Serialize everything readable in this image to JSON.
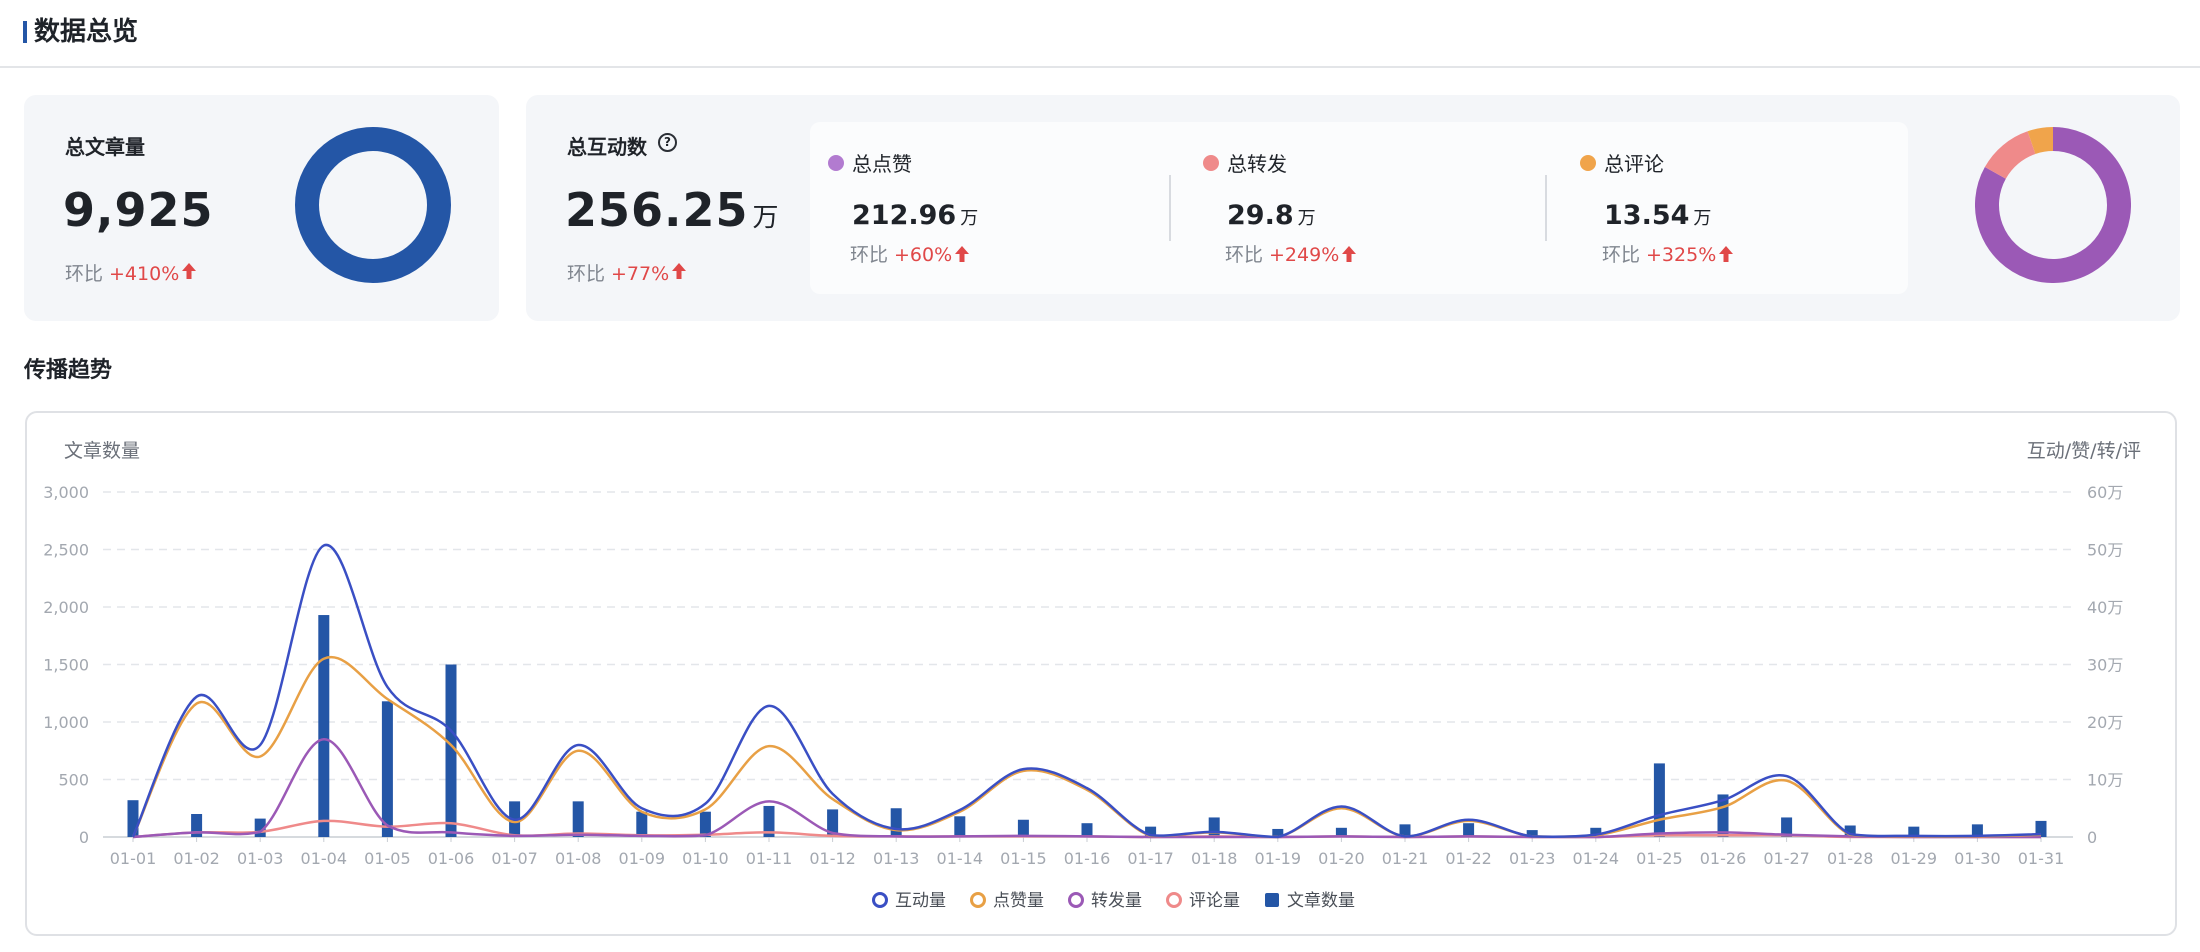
{
  "header": {
    "title": "数据总览"
  },
  "overview": {
    "articles": {
      "label": "总文章量",
      "value": "9,925",
      "mom_label": "环比",
      "mom_value": "+410%",
      "donut_color": "#2456a6"
    },
    "interactions": {
      "label": "总互动数",
      "value": "256.25",
      "unit": "万",
      "mom_label": "环比",
      "mom_value": "+77%",
      "items": [
        {
          "name": "总点赞",
          "value": "212.96",
          "unit": "万",
          "mom_label": "环比",
          "mom_value": "+60%",
          "color": "#9b59b6"
        },
        {
          "name": "总转发",
          "value": "29.8",
          "unit": "万",
          "mom_label": "环比",
          "mom_value": "+249%",
          "color": "#ef8a8a"
        },
        {
          "name": "总评论",
          "value": "13.54",
          "unit": "万",
          "mom_label": "环比",
          "mom_value": "+325%",
          "color": "#f0a44b"
        }
      ]
    }
  },
  "trend": {
    "title": "传播趋势",
    "chart_data": {
      "type": "bar+line",
      "ylabel_left": "文章数量",
      "ylabel_right": "互动/赞/转/评",
      "yticks_left": [
        "0",
        "500",
        "1,000",
        "1,500",
        "2,000",
        "2,500",
        "3,000"
      ],
      "yticks_right": [
        "0",
        "10万",
        "20万",
        "30万",
        "40万",
        "50万",
        "60万"
      ],
      "ylim_left": [
        0,
        3000
      ],
      "ylim_right": [
        0,
        600000
      ],
      "grid": true,
      "legend_position": "bottom",
      "categories": [
        "01-01",
        "01-02",
        "01-03",
        "01-04",
        "01-05",
        "01-06",
        "01-07",
        "01-08",
        "01-09",
        "01-10",
        "01-11",
        "01-12",
        "01-13",
        "01-14",
        "01-15",
        "01-16",
        "01-17",
        "01-18",
        "01-19",
        "01-20",
        "01-21",
        "01-22",
        "01-23",
        "01-24",
        "01-25",
        "01-26",
        "01-27",
        "01-28",
        "01-29",
        "01-30",
        "01-31"
      ],
      "bars": {
        "name": "文章数量",
        "color": "#2456a6",
        "values": [
          320,
          200,
          160,
          1930,
          1180,
          1500,
          310,
          310,
          220,
          220,
          270,
          240,
          250,
          180,
          150,
          120,
          90,
          170,
          70,
          80,
          110,
          120,
          60,
          80,
          640,
          370,
          170,
          100,
          90,
          110,
          140
        ]
      },
      "series": [
        {
          "name": "互动量",
          "color": "#3a4fc4",
          "values": [
            0,
            244000,
            160000,
            507000,
            261000,
            185000,
            30000,
            160000,
            50000,
            58000,
            228000,
            75000,
            14000,
            47000,
            118000,
            85000,
            3000,
            9000,
            0,
            53000,
            1000,
            30000,
            1000,
            4000,
            38000,
            64000,
            106000,
            5000,
            2000,
            2000,
            5000
          ]
        },
        {
          "name": "点赞量",
          "color": "#e8a045",
          "values": [
            0,
            232000,
            140000,
            310000,
            240000,
            160000,
            26000,
            150000,
            44000,
            48000,
            158000,
            66000,
            12000,
            44000,
            115000,
            82000,
            2000,
            8000,
            0,
            50000,
            1000,
            28000,
            1000,
            3000,
            30000,
            52000,
            98000,
            4000,
            1000,
            1000,
            4000
          ]
        },
        {
          "name": "转发量",
          "color": "#9b59b6",
          "values": [
            0,
            8000,
            9000,
            170000,
            20000,
            8000,
            2000,
            4000,
            2000,
            3000,
            62000,
            7000,
            1000,
            1000,
            2000,
            1000,
            0,
            0,
            0,
            1000,
            0,
            1000,
            0,
            0,
            6000,
            8000,
            4000,
            1000,
            0,
            0,
            0
          ]
        },
        {
          "name": "评论量",
          "color": "#ef8a8a",
          "values": [
            0,
            8000,
            9000,
            28000,
            18000,
            24000,
            3000,
            6000,
            3000,
            4000,
            8000,
            2000,
            1000,
            1000,
            1000,
            1000,
            0,
            1000,
            0,
            1000,
            0,
            1000,
            0,
            0,
            3000,
            3000,
            3000,
            0,
            0,
            0,
            0
          ]
        }
      ]
    }
  }
}
